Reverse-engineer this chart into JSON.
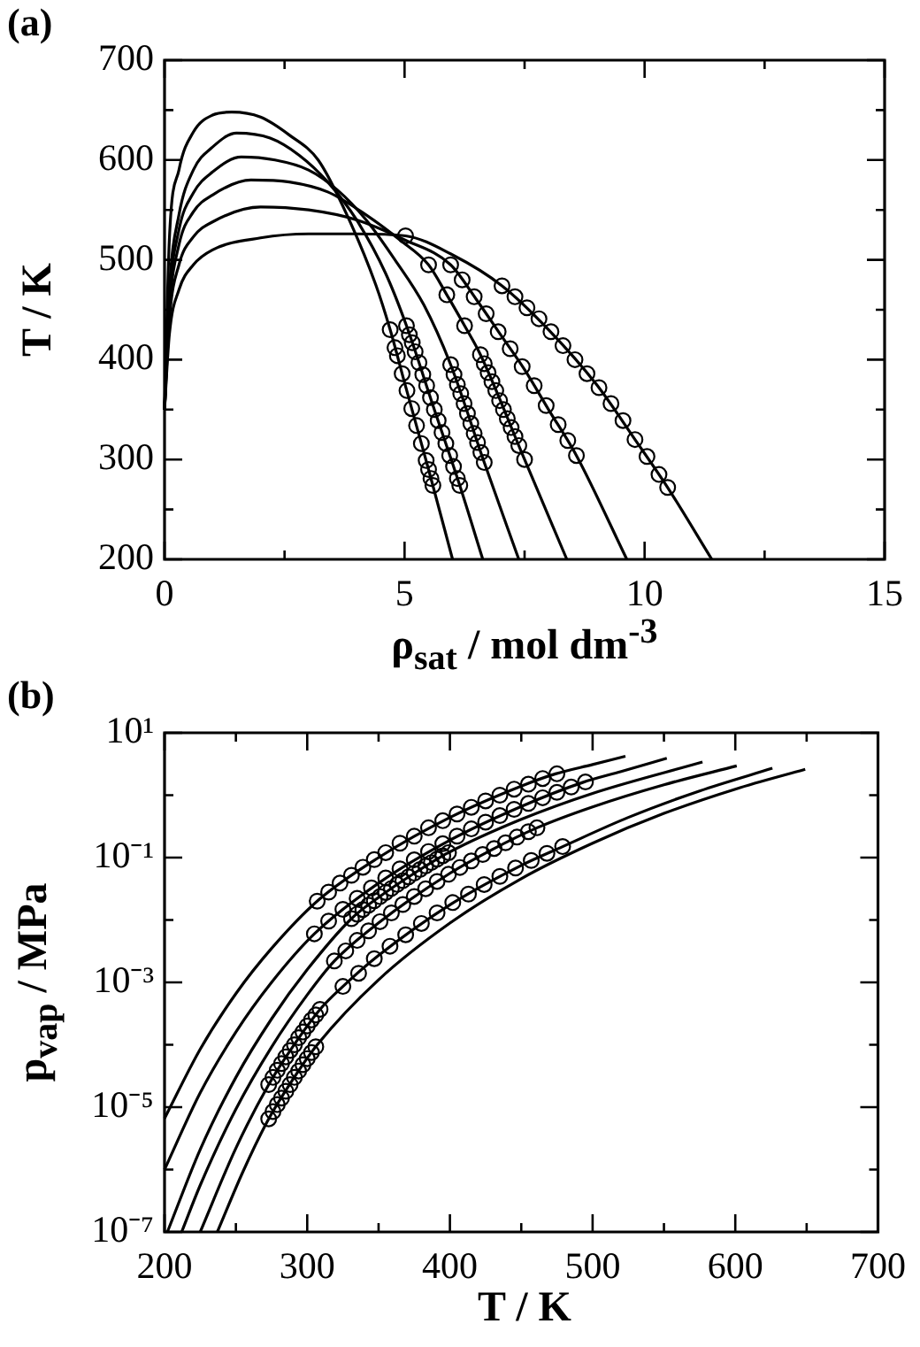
{
  "chart_data": [
    {
      "type": "line",
      "title": "(a)",
      "xlabel": "ρ$_{sat}$ / mol dm$^{-3}$",
      "ylabel": "T / K",
      "xlim": [
        0,
        15
      ],
      "xticks": [
        0,
        {
          "value": 2.5,
          "label": null
        },
        5,
        {
          "value": 7.5,
          "label": null
        },
        10,
        {
          "value": 12.5,
          "label": null
        },
        15
      ],
      "ylim": [
        200,
        700
      ],
      "yticks": [
        200,
        {
          "value": 250,
          "label": null
        },
        300,
        {
          "value": 350,
          "label": null
        },
        400,
        {
          "value": 450,
          "label": null
        },
        500,
        {
          "value": 550,
          "label": null
        },
        600,
        {
          "value": 650,
          "label": null
        },
        700
      ],
      "series": [
        {
          "type": "line",
          "marker": "none",
          "color": "#000000",
          "x": [
            0,
            0.1,
            0.3,
            0.6,
            1.0,
            1.4,
            2.0,
            2.6,
            3.2,
            3.8,
            4.4,
            4.7,
            5.0,
            5.5,
            6.0
          ],
          "values": [
            350,
            520,
            590,
            628,
            645,
            648,
            643,
            625,
            600,
            545,
            475,
            430,
            377,
            290,
            200
          ]
        },
        {
          "type": "line",
          "marker": "none",
          "color": "#000000",
          "x": [
            0,
            0.1,
            0.3,
            0.6,
            1.0,
            1.5,
            2.2,
            2.8,
            3.4,
            4.0,
            4.6,
            5.04,
            5.6,
            6.15,
            6.63
          ],
          "values": [
            350,
            470,
            545,
            590,
            613,
            627,
            622,
            605,
            578,
            540,
            487,
            434,
            353,
            274,
            200
          ]
        },
        {
          "type": "line",
          "marker": "none",
          "color": "#000000",
          "x": [
            0,
            0.1,
            0.3,
            0.6,
            1.0,
            1.6,
            2.3,
            3.0,
            3.6,
            4.2,
            4.8,
            5.4,
            5.96,
            6.66,
            7.38
          ],
          "values": [
            350,
            460,
            530,
            567,
            588,
            603,
            600,
            590,
            570,
            540,
            500,
            455,
            395,
            297,
            200
          ]
        },
        {
          "type": "line",
          "marker": "none",
          "color": "#000000",
          "x": [
            0,
            0.1,
            0.3,
            0.6,
            1.0,
            1.8,
            2.6,
            3.4,
            4.2,
            4.9,
            5.5,
            5.88,
            6.25,
            6.58,
            7.5,
            8.38
          ],
          "values": [
            350,
            450,
            515,
            548,
            565,
            580,
            578,
            568,
            545,
            520,
            495,
            465,
            434,
            405,
            300,
            200
          ]
        },
        {
          "type": "line",
          "marker": "none",
          "color": "#000000",
          "x": [
            0,
            0.1,
            0.3,
            0.6,
            1.0,
            2.0,
            3.0,
            4.0,
            5.0,
            5.96,
            6.5,
            7.0,
            7.5,
            8.0,
            8.58,
            9.63
          ],
          "values": [
            350,
            440,
            495,
            523,
            538,
            553,
            550,
            540,
            520,
            495,
            460,
            425,
            390,
            350,
            304,
            200
          ]
        },
        {
          "type": "line",
          "marker": "none",
          "color": "#000000",
          "x": [
            0,
            0.1,
            0.3,
            0.6,
            1.0,
            2.0,
            3.0,
            4.0,
            5.02,
            6.0,
            7.03,
            8.0,
            9.0,
            9.8,
            10.48,
            11.4
          ],
          "values": [
            350,
            425,
            470,
            495,
            510,
            522,
            526,
            526,
            524,
            505,
            474,
            430,
            375,
            320,
            272,
            200
          ]
        },
        {
          "type": "scatter",
          "marker": "circle",
          "color": "#000000",
          "x": [
            4.7,
            4.8,
            4.85,
            4.95,
            5.05,
            5.15,
            5.25,
            5.35,
            5.45,
            5.5,
            5.55,
            5.59
          ],
          "values": [
            430,
            412,
            404,
            386,
            369,
            351,
            334,
            316,
            299,
            290,
            281,
            274
          ]
        },
        {
          "type": "scatter",
          "marker": "circle",
          "color": "#000000",
          "x": [
            5.04,
            5.1,
            5.16,
            5.22,
            5.3,
            5.38,
            5.46,
            5.54,
            5.62,
            5.7,
            5.78,
            5.86,
            5.94,
            6.02,
            6.1,
            6.15
          ],
          "values": [
            434,
            425,
            417,
            408,
            397,
            385,
            374,
            362,
            350,
            339,
            327,
            316,
            304,
            293,
            281,
            274
          ]
        },
        {
          "type": "scatter",
          "marker": "circle",
          "color": "#000000",
          "x": [
            5.96,
            6.03,
            6.1,
            6.17,
            6.24,
            6.31,
            6.38,
            6.45,
            6.52,
            6.59,
            6.66
          ],
          "values": [
            395,
            385,
            375,
            366,
            356,
            346,
            336,
            326,
            317,
            307,
            297
          ]
        },
        {
          "type": "scatter",
          "marker": "circle",
          "color": "#000000",
          "x": [
            5.5,
            5.88,
            6.25,
            6.58,
            6.66,
            6.74,
            6.82,
            6.9,
            6.98,
            7.06,
            7.14,
            7.22,
            7.3,
            7.38,
            7.5
          ],
          "values": [
            495,
            465,
            434,
            405,
            396,
            387,
            378,
            369,
            359,
            350,
            341,
            332,
            323,
            314,
            300
          ]
        },
        {
          "type": "scatter",
          "marker": "circle",
          "color": "#000000",
          "x": [
            5.96,
            6.2,
            6.45,
            6.7,
            6.95,
            7.2,
            7.45,
            7.7,
            7.95,
            8.2,
            8.4,
            8.58
          ],
          "values": [
            495,
            480,
            463,
            446,
            428,
            411,
            393,
            374,
            354,
            335,
            319,
            304
          ]
        },
        {
          "type": "scatter",
          "marker": "circle",
          "color": "#000000",
          "x": [
            5.02,
            7.03,
            7.3,
            7.55,
            7.8,
            8.05,
            8.3,
            8.55,
            8.8,
            9.05,
            9.3,
            9.55,
            9.8,
            10.05,
            10.3,
            10.48
          ],
          "values": [
            524,
            474,
            463,
            452,
            441,
            428,
            414,
            400,
            386,
            372,
            356,
            339,
            320,
            303,
            285,
            272
          ]
        }
      ]
    },
    {
      "type": "line",
      "title": "(b)",
      "xlabel": "T / K",
      "ylabel": "p$_{vap}$ / MPa",
      "log": "y",
      "xlim": [
        200,
        700
      ],
      "xticks": [
        200,
        {
          "value": 250,
          "label": null
        },
        300,
        {
          "value": 350,
          "label": null
        },
        400,
        {
          "value": 450,
          "label": null
        },
        500,
        {
          "value": 550,
          "label": null
        },
        600,
        {
          "value": 650,
          "label": null
        },
        700
      ],
      "ylim": [
        1e-07,
        10
      ],
      "yticks": [
        {
          "value": 1e-07,
          "label": "10⁻⁷"
        },
        {
          "value": 1e-06,
          "label": null
        },
        {
          "value": 1e-05,
          "label": "10⁻⁵"
        },
        {
          "value": 0.0001,
          "label": null
        },
        {
          "value": 0.001,
          "label": "10⁻³"
        },
        {
          "value": 0.01,
          "label": null
        },
        {
          "value": 0.1,
          "label": "10⁻¹"
        },
        {
          "value": 1,
          "label": null
        },
        {
          "value": 10,
          "label": "10¹"
        }
      ],
      "series": [
        {
          "type": "line",
          "marker": "none",
          "color": "#000000",
          "x": [
            200,
            225,
            250,
            275,
            308,
            350,
            400,
            450,
            474,
            500,
            523
          ],
          "values": [
            6.6e-06,
            8.5e-05,
            0.00066,
            0.0035,
            0.021,
            0.1,
            0.44,
            1.4,
            2.2,
            3.1,
            4.2
          ]
        },
        {
          "type": "line",
          "marker": "none",
          "color": "#000000",
          "x": [
            200,
            225,
            250,
            275,
            305,
            350,
            400,
            450,
            493,
            520,
            552
          ],
          "values": [
            1e-06,
            1.7e-05,
            0.00016,
            0.001,
            0.006,
            0.039,
            0.19,
            0.66,
            1.6,
            2.4,
            3.9
          ]
        },
        {
          "type": "line",
          "marker": "none",
          "color": "#000000",
          "x": [
            202,
            225,
            250,
            275,
            300,
            331,
            350,
            375,
            399,
            450,
            500,
            577
          ],
          "values": [
            1e-07,
            2.1e-06,
            3e-05,
            0.00026,
            0.0016,
            0.0105,
            0.023,
            0.056,
            0.12,
            0.41,
            1.07,
            3.4
          ]
        },
        {
          "type": "line",
          "marker": "none",
          "color": "#000000",
          "x": [
            212,
            225,
            250,
            275,
            300,
            319,
            350,
            400,
            430,
            461,
            500,
            550,
            601
          ],
          "values": [
            1e-07,
            5.6e-07,
            9.3e-06,
            9.2e-05,
            0.00063,
            0.0022,
            0.009,
            0.056,
            0.136,
            0.3,
            0.65,
            1.47,
            2.95
          ]
        },
        {
          "type": "line",
          "marker": "none",
          "color": "#000000",
          "x": [
            225,
            250,
            273,
            290,
            309,
            325,
            350,
            400,
            450,
            479,
            525,
            575,
            626
          ],
          "values": [
            1e-07,
            2.2e-06,
            2.3e-05,
            9.4e-05,
            0.00037,
            0.00086,
            0.0027,
            0.0175,
            0.075,
            0.15,
            0.44,
            1.17,
            2.7
          ]
        },
        {
          "type": "line",
          "marker": "none",
          "color": "#000000",
          "x": [
            237,
            255,
            273,
            290,
            307,
            350,
            400,
            450,
            500,
            550,
            600,
            649
          ],
          "values": [
            1e-07,
            9.3e-07,
            6.5e-06,
            2.8e-05,
            0.0001,
            0.0011,
            0.0089,
            0.046,
            0.17,
            0.51,
            1.25,
            2.6
          ]
        },
        {
          "type": "scatter",
          "marker": "circle",
          "color": "#000000",
          "x": [
            307,
            315,
            323,
            331,
            339,
            347,
            355,
            365,
            375,
            385,
            395,
            405,
            415,
            425,
            435,
            445,
            455,
            465,
            475
          ],
          "values": [
            0.02,
            0.028,
            0.039,
            0.052,
            0.07,
            0.093,
            0.12,
            0.17,
            0.22,
            0.3,
            0.39,
            0.5,
            0.64,
            0.81,
            1.0,
            1.25,
            1.5,
            1.85,
            2.2
          ]
        },
        {
          "type": "scatter",
          "marker": "circle",
          "color": "#000000",
          "x": [
            305,
            315,
            325,
            335,
            345,
            355,
            365,
            375,
            385,
            395,
            405,
            415,
            425,
            435,
            445,
            455,
            465,
            475,
            485,
            495
          ],
          "values": [
            0.006,
            0.0096,
            0.0148,
            0.0223,
            0.0327,
            0.0471,
            0.066,
            0.092,
            0.125,
            0.167,
            0.221,
            0.288,
            0.37,
            0.471,
            0.593,
            0.738,
            0.91,
            1.11,
            1.35,
            1.63
          ]
        },
        {
          "type": "scatter",
          "marker": "circle",
          "color": "#000000",
          "x": [
            331,
            335,
            339,
            343,
            347,
            351,
            355,
            359,
            363,
            367,
            371,
            375,
            379,
            383,
            387,
            391,
            395,
            399
          ],
          "values": [
            0.0105,
            0.0124,
            0.0147,
            0.0173,
            0.0203,
            0.0237,
            0.0276,
            0.032,
            0.0371,
            0.0427,
            0.0491,
            0.0562,
            0.0643,
            0.0733,
            0.0832,
            0.0944,
            0.107,
            0.12
          ]
        },
        {
          "type": "scatter",
          "marker": "circle",
          "color": "#000000",
          "x": [
            319,
            327,
            335,
            343,
            351,
            359,
            367,
            375,
            383,
            391,
            399,
            407,
            415,
            423,
            431,
            439,
            447,
            455,
            461
          ],
          "values": [
            0.0022,
            0.0032,
            0.0047,
            0.0067,
            0.0094,
            0.013,
            0.0177,
            0.0238,
            0.0317,
            0.0415,
            0.054,
            0.0695,
            0.0883,
            0.112,
            0.14,
            0.173,
            0.213,
            0.26,
            0.3
          ]
        },
        {
          "type": "scatter",
          "marker": "circle",
          "color": "#000000",
          "x": [
            273,
            276,
            279,
            282,
            285,
            288,
            291,
            294,
            297,
            300,
            303,
            306,
            309
          ],
          "values": [
            2.3e-05,
            3e-05,
            3.9e-05,
            5e-05,
            6.4e-05,
            8.1e-05,
            0.0001,
            0.00013,
            0.00016,
            0.0002,
            0.00025,
            0.0003,
            0.00037
          ]
        },
        {
          "type": "scatter",
          "marker": "circle",
          "color": "#000000",
          "x": [
            325,
            336,
            347,
            358,
            369,
            380,
            391,
            402,
            413,
            424,
            435,
            446,
            457,
            468,
            479
          ],
          "values": [
            0.00086,
            0.0014,
            0.0024,
            0.0038,
            0.0058,
            0.0088,
            0.013,
            0.019,
            0.026,
            0.037,
            0.05,
            0.068,
            0.09,
            0.117,
            0.15
          ]
        },
        {
          "type": "scatter",
          "marker": "circle",
          "color": "#000000",
          "x": [
            273,
            276,
            279,
            282,
            285,
            288,
            291,
            294,
            297,
            300,
            303,
            306
          ],
          "values": [
            6.5e-06,
            8.5e-06,
            1.1e-05,
            1.4e-05,
            1.8e-05,
            2.3e-05,
            3e-05,
            3.8e-05,
            4.8e-05,
            6e-05,
            7.5e-05,
            9.3e-05
          ]
        }
      ]
    }
  ]
}
